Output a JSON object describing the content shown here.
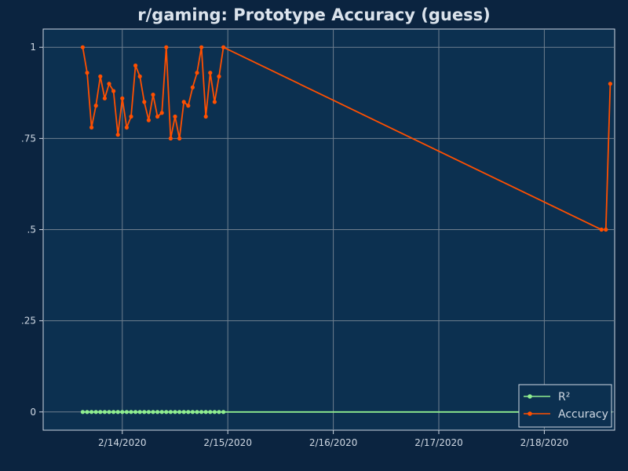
{
  "chart_data": {
    "type": "line",
    "title": "r/gaming: Prototype Accuracy (guess)",
    "xlabel": "",
    "ylabel": "",
    "x_tick_labels": [
      "2/14/2020",
      "2/15/2020",
      "2/16/2020",
      "2/17/2020",
      "2/18/2020"
    ],
    "x_range": [
      "2020-02-13 06:00",
      "2020-02-18 16:00"
    ],
    "y_tick_labels": [
      "0",
      ".25",
      ".5",
      ".75",
      "1"
    ],
    "y_ticks": [
      0,
      0.25,
      0.5,
      0.75,
      1
    ],
    "ylim": [
      -0.05,
      1.05
    ],
    "grid": true,
    "legend_position": "bottom-right",
    "series": [
      {
        "name": "R²",
        "color": "#90ee90",
        "x": [
          "2020-02-13 15:00",
          "2020-02-13 16:00",
          "2020-02-13 17:00",
          "2020-02-13 18:00",
          "2020-02-13 19:00",
          "2020-02-13 20:00",
          "2020-02-13 21:00",
          "2020-02-13 22:00",
          "2020-02-13 23:00",
          "2020-02-14 00:00",
          "2020-02-14 01:00",
          "2020-02-14 02:00",
          "2020-02-14 03:00",
          "2020-02-14 04:00",
          "2020-02-14 05:00",
          "2020-02-14 06:00",
          "2020-02-14 07:00",
          "2020-02-14 08:00",
          "2020-02-14 09:00",
          "2020-02-14 10:00",
          "2020-02-14 11:00",
          "2020-02-14 12:00",
          "2020-02-14 13:00",
          "2020-02-14 14:00",
          "2020-02-14 15:00",
          "2020-02-14 16:00",
          "2020-02-14 17:00",
          "2020-02-14 18:00",
          "2020-02-14 19:00",
          "2020-02-14 20:00",
          "2020-02-14 21:00",
          "2020-02-14 22:00",
          "2020-02-14 23:00",
          "2020-02-18 15:00"
        ],
        "values": [
          0,
          0,
          0,
          0,
          0,
          0,
          0,
          0,
          0,
          0,
          0,
          0,
          0,
          0,
          0,
          0,
          0,
          0,
          0,
          0,
          0,
          0,
          0,
          0,
          0,
          0,
          0,
          0,
          0,
          0,
          0,
          0,
          0,
          0
        ]
      },
      {
        "name": "Accuracy",
        "color": "#ff4f00",
        "x": [
          "2020-02-13 15:00",
          "2020-02-13 16:00",
          "2020-02-13 17:00",
          "2020-02-13 18:00",
          "2020-02-13 19:00",
          "2020-02-13 20:00",
          "2020-02-13 21:00",
          "2020-02-13 22:00",
          "2020-02-13 23:00",
          "2020-02-14 00:00",
          "2020-02-14 01:00",
          "2020-02-14 02:00",
          "2020-02-14 03:00",
          "2020-02-14 04:00",
          "2020-02-14 05:00",
          "2020-02-14 06:00",
          "2020-02-14 07:00",
          "2020-02-14 08:00",
          "2020-02-14 09:00",
          "2020-02-14 10:00",
          "2020-02-14 11:00",
          "2020-02-14 12:00",
          "2020-02-14 13:00",
          "2020-02-14 14:00",
          "2020-02-14 15:00",
          "2020-02-14 16:00",
          "2020-02-14 17:00",
          "2020-02-14 18:00",
          "2020-02-14 19:00",
          "2020-02-14 20:00",
          "2020-02-14 21:00",
          "2020-02-14 22:00",
          "2020-02-14 23:00",
          "2020-02-18 13:00",
          "2020-02-18 14:00",
          "2020-02-18 15:00"
        ],
        "values": [
          1.0,
          0.93,
          0.78,
          0.84,
          0.92,
          0.86,
          0.9,
          0.88,
          0.76,
          0.86,
          0.78,
          0.81,
          0.95,
          0.92,
          0.85,
          0.8,
          0.87,
          0.81,
          0.82,
          1.0,
          0.75,
          0.81,
          0.75,
          0.85,
          0.84,
          0.89,
          0.93,
          1.0,
          0.81,
          0.93,
          0.85,
          0.92,
          1.0,
          0.5,
          0.5,
          0.9
        ]
      }
    ]
  }
}
